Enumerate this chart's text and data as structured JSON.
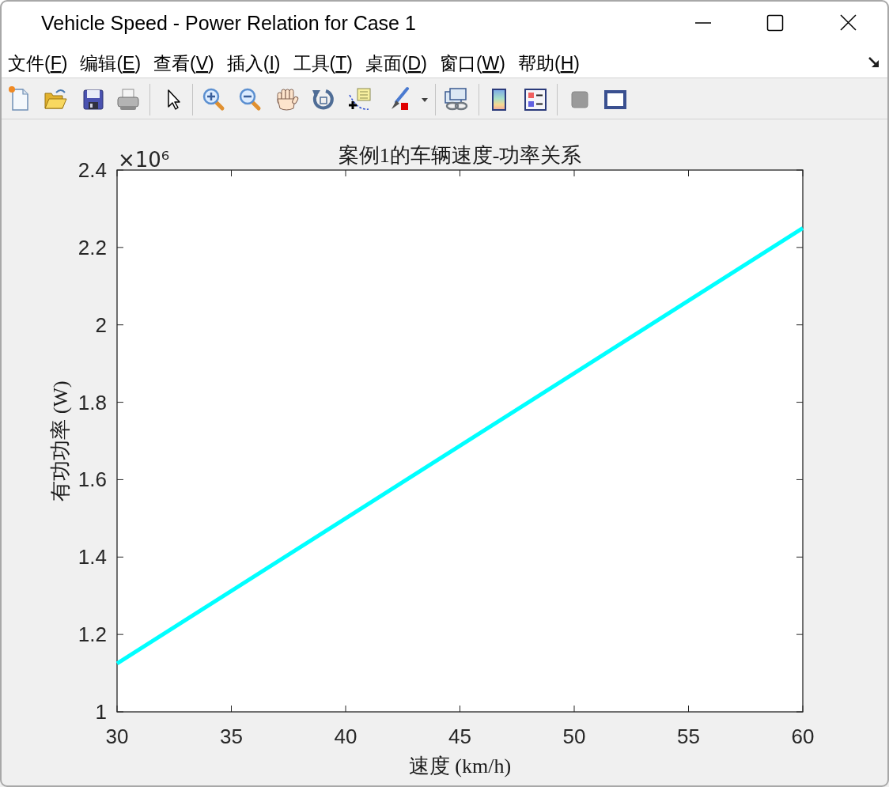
{
  "chart_data": {
    "type": "line",
    "title": "案例1的车辆速度-功率关系",
    "xlabel": "速度 (km/h)",
    "ylabel": "有功功率 (W)",
    "annotations": [
      "Vehicle Speed - Power Relation for Case 1",
      "文件(F)",
      "编辑(E)",
      "查看(V)",
      "插入(I)",
      "工具(T)",
      "桌面(D)",
      "窗口(W)",
      "帮助(H)",
      "×10⁶"
    ],
    "x": [
      30,
      40,
      50,
      60
    ],
    "series": [
      {
        "color": "#00ffff",
        "values": [
          1.125,
          1.5,
          1.875,
          2.25
        ]
      }
    ],
    "xlim": [
      30,
      60
    ],
    "ylim": [
      1,
      2.4
    ],
    "xticks": [
      30,
      35,
      40,
      45,
      50,
      55,
      60
    ],
    "yticks": [
      1,
      1.2,
      1.4,
      1.6,
      1.8,
      2,
      2.2,
      2.4
    ],
    "line_style": "solid"
  }
}
